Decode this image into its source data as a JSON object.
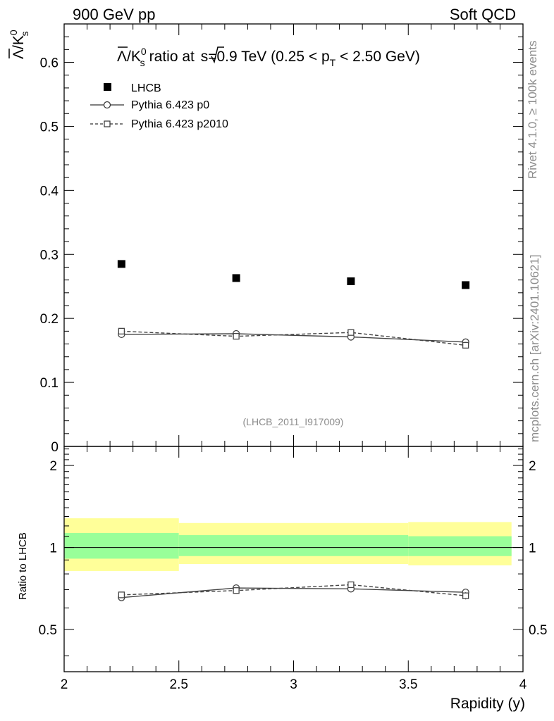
{
  "header": {
    "left": "900 GeV pp",
    "right": "Soft QCD"
  },
  "side_text": {
    "rivet": "Rivet 4.1.0, ≥ 100k events",
    "mcplots": "mcplots.cern.ch [arXiv:2401.10621]"
  },
  "chart_data": [
    {
      "type": "scatter",
      "panel": "main",
      "title_parts": {
        "ratio_text": "ratio at ",
        "sqrt_s": "s",
        "energy": "=0.9 TeV (0.25 < p",
        "pt_sub": "T",
        "range_end": " < 2.50 GeV)"
      },
      "ylabel_parts": {
        "lambda": "Λ",
        "slash_k": "/K",
        "sup": "0",
        "sub": "s"
      },
      "xlim": [
        2,
        4
      ],
      "ylim": [
        0,
        0.66
      ],
      "yticks": [
        0,
        0.1,
        0.2,
        0.3,
        0.4,
        0.5,
        0.6
      ],
      "ytick_labels": [
        "0",
        "0.1",
        "0.2",
        "0.3",
        "0.4",
        "0.5",
        "0.6"
      ],
      "watermark": "(LHCB_2011_I917009)",
      "legend": [
        {
          "label": "LHCB",
          "marker": "square-filled"
        },
        {
          "label": "Pythia 6.423 p0",
          "marker": "circle-open",
          "line": "solid"
        },
        {
          "label": "Pythia 6.423 p2010",
          "marker": "square-open",
          "line": "dashed"
        }
      ],
      "x": [
        2.25,
        2.75,
        3.25,
        3.75
      ],
      "series": [
        {
          "name": "LHCB",
          "values": [
            0.285,
            0.263,
            0.258,
            0.252
          ]
        },
        {
          "name": "Pythia 6.423 p0",
          "values": [
            0.175,
            0.176,
            0.171,
            0.163
          ],
          "err": [
            0.003,
            0.003,
            0.004,
            0.005
          ]
        },
        {
          "name": "Pythia 6.423 p2010",
          "values": [
            0.18,
            0.172,
            0.178,
            0.158
          ],
          "err": [
            0.003,
            0.003,
            0.004,
            0.005
          ]
        }
      ]
    },
    {
      "type": "scatter",
      "panel": "ratio",
      "ylabel": "Ratio to LHCB",
      "xlabel": "Rapidity (y)",
      "xlim": [
        2,
        4
      ],
      "ylim": [
        0.35,
        2.35
      ],
      "log_y": true,
      "xticks": [
        2,
        2.5,
        3,
        3.5,
        4
      ],
      "xtick_labels": [
        "2",
        "2.5",
        "3",
        "3.5",
        "4"
      ],
      "ytick_labels_major": [
        {
          "value": 0.5,
          "label": "0.5"
        },
        {
          "value": 1,
          "label": "1"
        },
        {
          "value": 2,
          "label": "2"
        }
      ],
      "bands": [
        {
          "x0": 2.0,
          "x1": 2.5,
          "inner": [
            0.91,
            1.13
          ],
          "outer": [
            0.82,
            1.28
          ]
        },
        {
          "x0": 2.5,
          "x1": 3.5,
          "inner": [
            0.93,
            1.11
          ],
          "outer": [
            0.87,
            1.23
          ]
        },
        {
          "x0": 3.5,
          "x1": 3.95,
          "inner": [
            0.93,
            1.1
          ],
          "outer": [
            0.86,
            1.24
          ]
        }
      ],
      "x": [
        2.25,
        2.75,
        3.25,
        3.75
      ],
      "series": [
        {
          "name": "Pythia 6.423 p0",
          "values": [
            0.655,
            0.71,
            0.705,
            0.685
          ],
          "err": [
            0.01,
            0.012,
            0.015,
            0.02
          ]
        },
        {
          "name": "Pythia 6.423 p2010",
          "values": [
            0.67,
            0.695,
            0.73,
            0.665
          ],
          "err": [
            0.01,
            0.012,
            0.015,
            0.02
          ]
        }
      ]
    }
  ]
}
